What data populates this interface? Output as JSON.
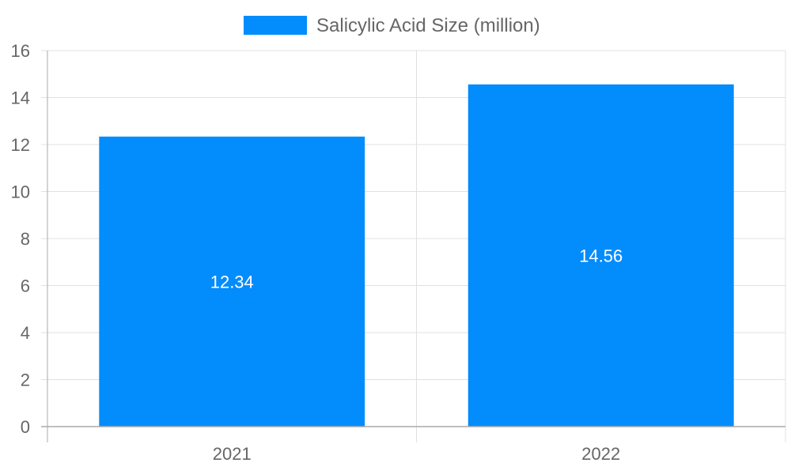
{
  "chart_data": {
    "type": "bar",
    "title": "",
    "xlabel": "",
    "ylabel": "",
    "categories": [
      "2021",
      "2022"
    ],
    "series": [
      {
        "name": "Salicylic Acid Size (million)",
        "values": [
          12.34,
          14.56
        ],
        "color": "#038cfc"
      }
    ],
    "data_labels": [
      "12.34",
      "14.56"
    ],
    "ylim": [
      0,
      16
    ],
    "yticks": [
      "0",
      "2",
      "4",
      "6",
      "8",
      "10",
      "12",
      "14",
      "16"
    ],
    "grid": true,
    "legend_position": "top"
  }
}
